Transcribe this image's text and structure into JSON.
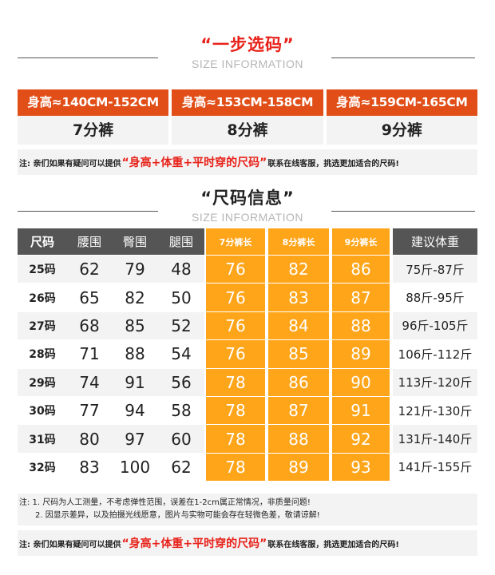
{
  "section1": {
    "title": "“一步选码”",
    "subtitle": "SIZE INFORMATION"
  },
  "height_table": [
    {
      "range": "身高≈140CM-152CM",
      "length": "7分裤"
    },
    {
      "range": "身高≈153CM-158CM",
      "length": "8分裤"
    },
    {
      "range": "身高≈159CM-165CM",
      "length": "9分裤"
    }
  ],
  "note": {
    "prefix": "注: 亲们如果有疑问可以提供",
    "highlight": "“身高+体重+平时穿的尺码”",
    "suffix": "联系在线客服，挑选更加适合的尺码!"
  },
  "section2": {
    "title": "“尺码信息”",
    "subtitle": "SIZE INFORMATION"
  },
  "size_table": {
    "headers": [
      "尺码",
      "腰围",
      "臀围",
      "腿围",
      "7分裤长",
      "8分裤长",
      "9分裤长",
      "建议体重"
    ],
    "rows": [
      [
        "25码",
        "62",
        "79",
        "48",
        "76",
        "82",
        "86",
        "75斤-87斤"
      ],
      [
        "26码",
        "65",
        "82",
        "50",
        "76",
        "83",
        "87",
        "88斤-95斤"
      ],
      [
        "27码",
        "68",
        "85",
        "52",
        "76",
        "84",
        "88",
        "96斤-105斤"
      ],
      [
        "28码",
        "71",
        "88",
        "54",
        "76",
        "85",
        "89",
        "106斤-112斤"
      ],
      [
        "29码",
        "74",
        "91",
        "56",
        "78",
        "86",
        "90",
        "113斤-120斤"
      ],
      [
        "30码",
        "77",
        "94",
        "58",
        "78",
        "87",
        "91",
        "121斤-130斤"
      ],
      [
        "31码",
        "80",
        "97",
        "60",
        "78",
        "88",
        "92",
        "131斤-140斤"
      ],
      [
        "32码",
        "83",
        "100",
        "62",
        "78",
        "89",
        "93",
        "141斤-155斤"
      ]
    ]
  },
  "footnotes": {
    "line1": "注: 1. 尺码为人工测量，不考虑弹性范围，误差在1-2cm属正常情况，非质量问题!",
    "line2": "2. 因显示差异，以及拍摄光线愿意，图片与实物可能会存在轻微色差，敬请谅解!"
  },
  "colors": {
    "accent_red": "#e14e17",
    "highlight_red": "#e8221a",
    "orange": "#ffa51a",
    "header_gray": "#555555"
  }
}
